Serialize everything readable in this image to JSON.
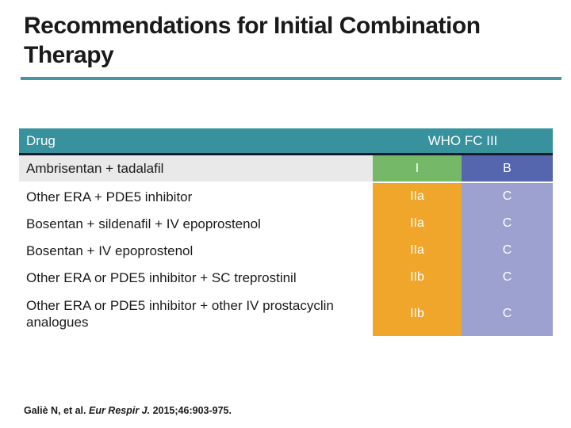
{
  "slide": {
    "title_line1": "Recommendations for Initial Combination",
    "title_line2": "Therapy"
  },
  "table": {
    "header": {
      "drug_col": "Drug",
      "who_fc_col": "WHO FC III"
    },
    "rows": [
      {
        "drug": "Ambrisentan + tadalafil",
        "rating": "I",
        "rating_bg": "#75B868",
        "loe": "B",
        "loe_bg": "#5565AE",
        "row_bg": "#E9E9E9"
      },
      {
        "drug": "Other ERA + PDE5 inhibitor",
        "rating": "IIa",
        "rating_bg": "#F0A62B",
        "loe": "C",
        "loe_bg": "#9CA1CF",
        "row_bg": "#FFFFFF"
      },
      {
        "drug": "Bosentan + sildenafil + IV epoprostenol",
        "rating": "IIa",
        "rating_bg": "#F0A62B",
        "loe": "C",
        "loe_bg": "#9CA1CF",
        "row_bg": "#FFFFFF"
      },
      {
        "drug": "Bosentan + IV epoprostenol",
        "rating": "IIa",
        "rating_bg": "#F0A62B",
        "loe": "C",
        "loe_bg": "#9CA1CF",
        "row_bg": "#FFFFFF"
      },
      {
        "drug": "Other ERA or PDE5 inhibitor + SC treprostinil",
        "rating": "IIb",
        "rating_bg": "#F0A62B",
        "loe": "C",
        "loe_bg": "#9CA1CF",
        "row_bg": "#FFFFFF"
      },
      {
        "drug": "Other ERA or PDE5 inhibitor + other IV prostacyclin analogues",
        "rating": "IIb",
        "rating_bg": "#F0A62B",
        "loe": "C",
        "loe_bg": "#9CA1CF",
        "row_bg": "#FFFFFF"
      }
    ]
  },
  "footer": {
    "citation_author": "Galiè N, et al. ",
    "citation_journal": "Eur Respir J. ",
    "citation_detail": "2015;46:903-975."
  },
  "colors": {
    "header_teal": "#38929E",
    "rule_teal": "#4A93A0",
    "header_border_navy": "#111A2B",
    "highlight_row_gray": "#E9E9E9",
    "class_I_green": "#75B868",
    "class_II_orange": "#F0A62B",
    "evidence_B_blue": "#5565AE",
    "evidence_C_purple": "#9CA1CF",
    "text_ink": "#1A1A1A"
  }
}
